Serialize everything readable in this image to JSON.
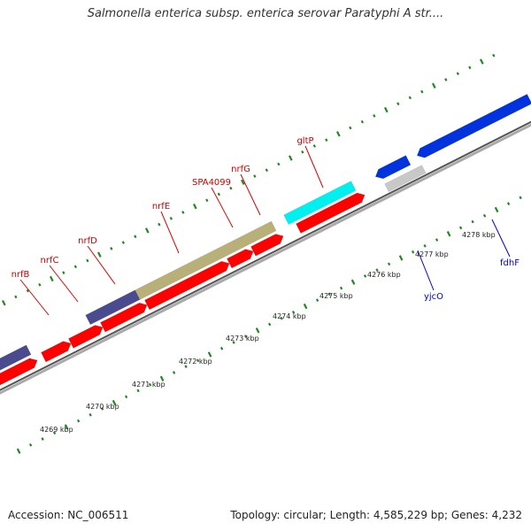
{
  "title": "Salmonella enterica subsp. enterica serovar Paratyphi A str....",
  "accession": "Accession: NC_006511",
  "topology": "Topology: circular; Length: 4,585,229 bp; Genes: 4,232",
  "colors": {
    "gene_red": "#ff0000",
    "gene_navy": "#4a4a8e",
    "gene_olive": "#b8b078",
    "gene_cyan": "#00f0f0",
    "gene_blue": "#0033dd",
    "gene_gray": "#c8c8c8",
    "backbone": "#888888",
    "tick": "#228822"
  },
  "kbp_labels": [
    "4269 kbp",
    "4270 kbp",
    "4271 kbp",
    "4272 kbp",
    "4273 kbp",
    "4274 kbp",
    "4275 kbp",
    "4276 kbp",
    "4277 kbp",
    "4278 kbp"
  ],
  "genes_forward_labels": [
    "nrfB",
    "nrfC",
    "nrfD",
    "nrfE",
    "SPA4099",
    "nrfG",
    "gltP"
  ],
  "genes_reverse_labels": [
    "yjcO",
    "fdhF"
  ]
}
